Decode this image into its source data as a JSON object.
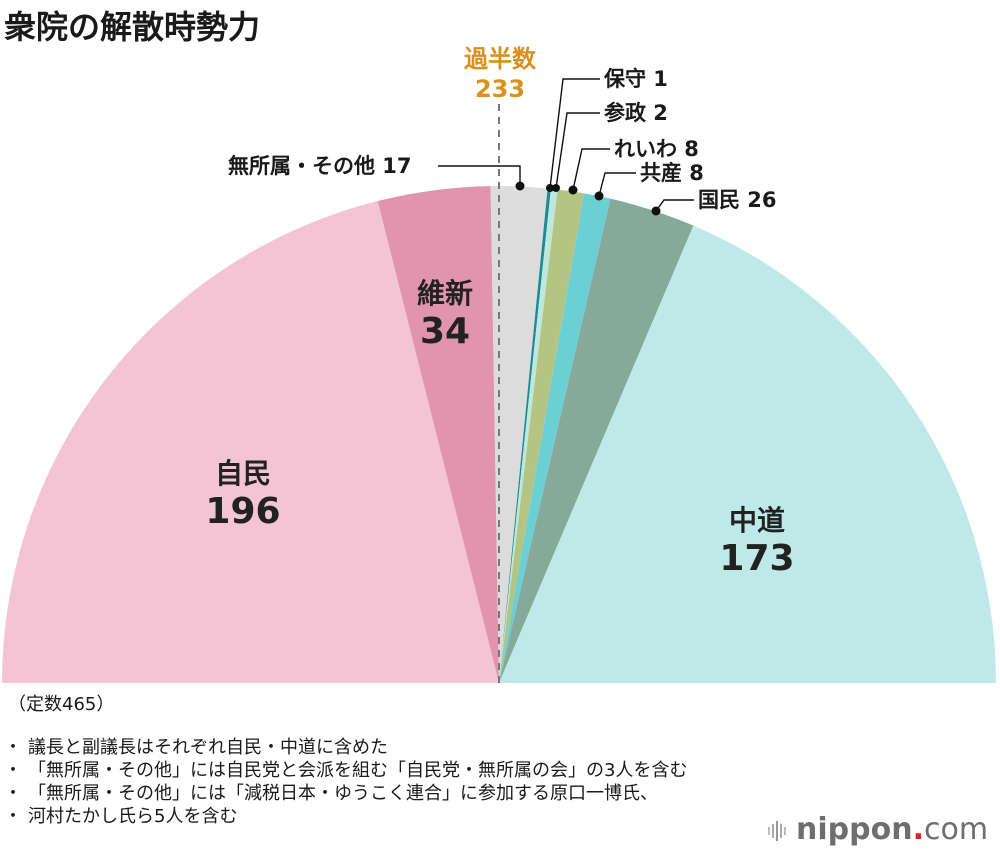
{
  "title": "衆院の解散時勢力",
  "majority": {
    "label": "過半数",
    "value": "233",
    "color": "#d9901f"
  },
  "teisu": "（定数465）",
  "notes": [
    "議長と副議長はそれぞれ自民・中道に含めた",
    "「無所属・その他」には自民党と会派を組む「自民党・無所属の会」の3人を含む",
    "「無所属・その他」には「減税日本・ゆうこく連合」に参加する原口一博氏、",
    "河村たかし氏ら5人を含む"
  ],
  "logo": {
    "name": "nippon",
    "dot": ".",
    "tld": "com"
  },
  "segment_labels": {
    "jimin": {
      "name": "自民",
      "num": "196"
    },
    "ishin": {
      "name": "維新",
      "num": "34"
    },
    "chudo": {
      "name": "中道",
      "num": "173"
    }
  },
  "callouts": {
    "mushozoku": "無所属・その他 17",
    "hoshu": "保守 1",
    "sansei": "参政 2",
    "reiwa": "れいわ 8",
    "kyosan": "共産 8",
    "kokumin": "国民 26"
  },
  "chart_data": {
    "type": "pie",
    "subtype": "semicircle (parliament half-donut, full semicircle)",
    "title": "衆院の解散時勢力",
    "total": 465,
    "majority_line": 233,
    "order": "clockwise from left",
    "categories": [
      "自民",
      "維新",
      "無所属・その他",
      "保守",
      "参政",
      "れいわ",
      "共産",
      "国民",
      "中道"
    ],
    "values": [
      196,
      34,
      17,
      1,
      2,
      8,
      8,
      26,
      173
    ],
    "colors": [
      "#f3c4d4",
      "#e094ae",
      "#dcdcdc",
      "#1f8a95",
      "#bfe8dc",
      "#b3c483",
      "#6ccfd4",
      "#85aa99",
      "#bfe9e9"
    ],
    "annotations": [
      "過半数 233",
      "（定数465）"
    ]
  }
}
